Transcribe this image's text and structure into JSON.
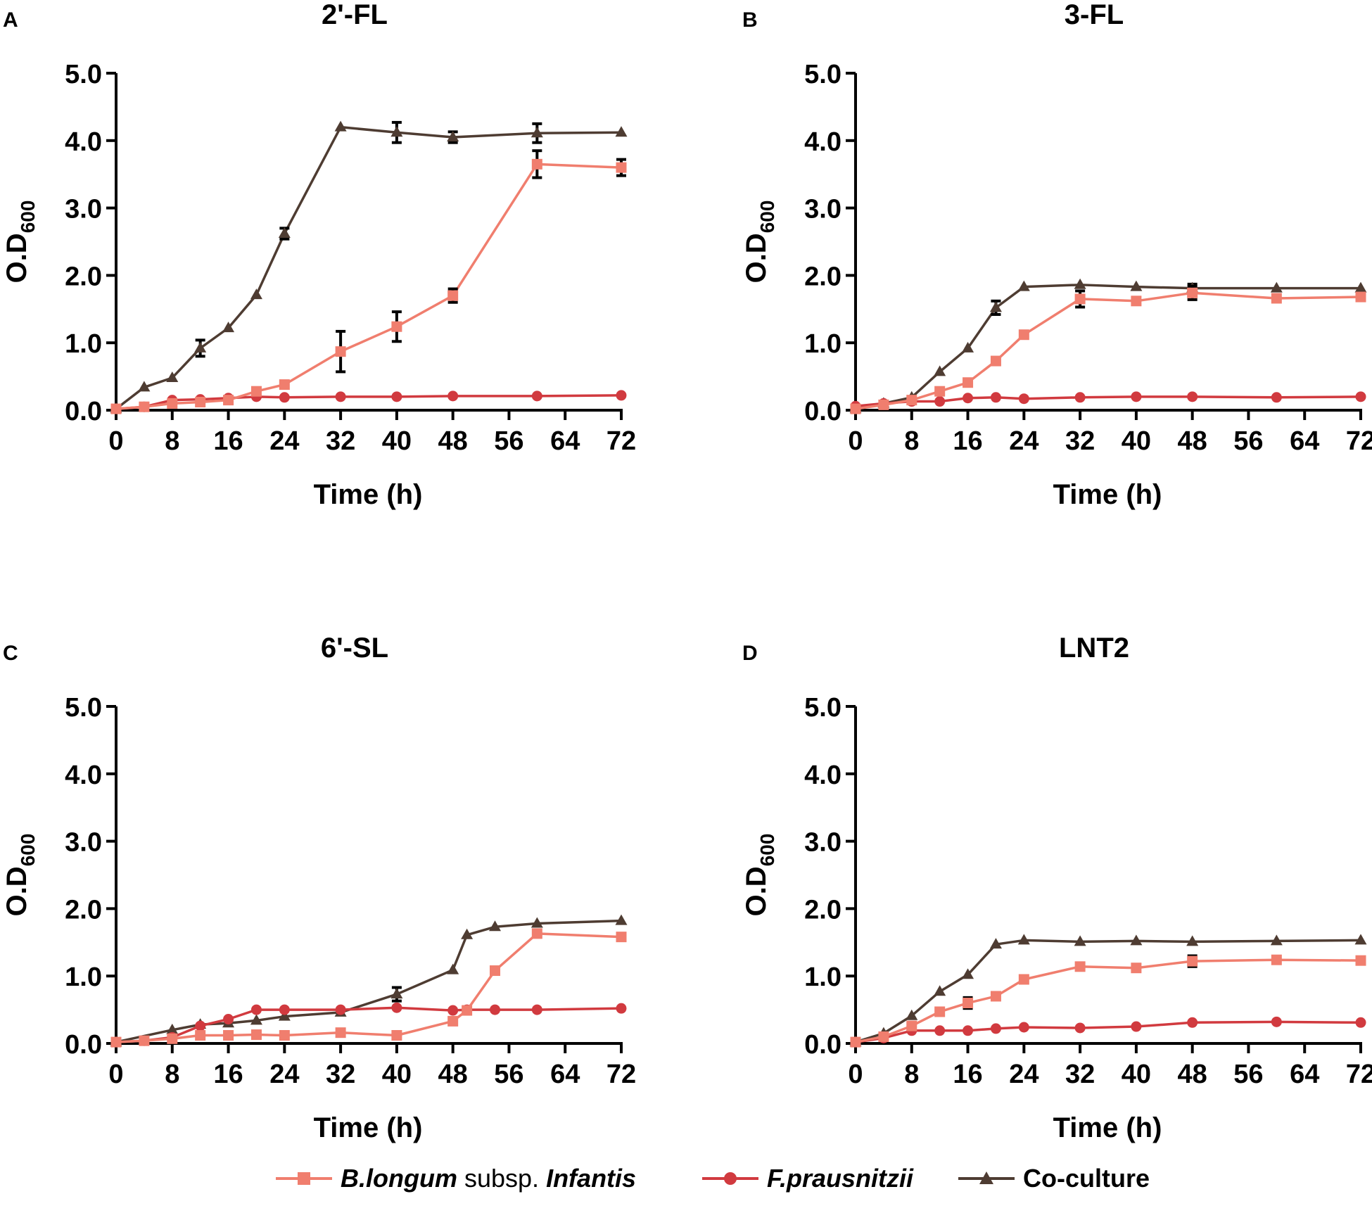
{
  "figure": {
    "legend": {
      "binf": {
        "italic1": "B.longum",
        "plain": " subsp. ",
        "italic2": "Infantis"
      },
      "fpra": {
        "text": "F.prausnitzii"
      },
      "cocult": {
        "text": "Co-culture"
      }
    },
    "ylabel_main": "O.D",
    "ylabel_sub": "600"
  },
  "chart_data": [
    {
      "type": "line",
      "panel": "A",
      "title": "2'-FL",
      "xlabel": "Time (h)",
      "ylabel": "O.D600",
      "xlim": [
        0,
        72
      ],
      "ylim": [
        0,
        5
      ],
      "xticks": [
        0,
        8,
        16,
        24,
        32,
        40,
        48,
        56,
        64,
        72
      ],
      "yticks": [
        0.0,
        1.0,
        2.0,
        3.0,
        4.0,
        5.0
      ],
      "ytick_labels": [
        "0.0",
        "1.0",
        "2.0",
        "3.0",
        "4.0",
        "5.0"
      ],
      "series": [
        {
          "name": "B.longum subsp. Infantis",
          "color": "#f07e6e",
          "marker": "square",
          "x": [
            0,
            4,
            8,
            12,
            16,
            20,
            24,
            32,
            40,
            48,
            60,
            72
          ],
          "y": [
            0.02,
            0.05,
            0.1,
            0.12,
            0.15,
            0.28,
            0.38,
            0.87,
            1.24,
            1.7,
            3.65,
            3.6
          ],
          "err": [
            0,
            0,
            0,
            0,
            0,
            0,
            0,
            0.3,
            0.22,
            0.1,
            0.2,
            0.12
          ]
        },
        {
          "name": "F.prausnitzii",
          "color": "#d13a3f",
          "marker": "circle",
          "x": [
            0,
            4,
            8,
            12,
            16,
            20,
            24,
            32,
            40,
            48,
            60,
            72
          ],
          "y": [
            0.02,
            0.05,
            0.15,
            0.16,
            0.18,
            0.2,
            0.19,
            0.2,
            0.2,
            0.21,
            0.21,
            0.22
          ],
          "err": [
            0,
            0,
            0,
            0,
            0,
            0,
            0,
            0,
            0,
            0,
            0,
            0
          ]
        },
        {
          "name": "Co-culture",
          "color": "#4e3c32",
          "marker": "triangle",
          "x": [
            0,
            4,
            8,
            12,
            16,
            20,
            24,
            32,
            40,
            48,
            60,
            72
          ],
          "y": [
            0.02,
            0.34,
            0.48,
            0.92,
            1.22,
            1.71,
            2.62,
            4.2,
            4.12,
            4.05,
            4.11,
            4.12
          ],
          "err": [
            0,
            0,
            0,
            0.12,
            0,
            0,
            0.08,
            0,
            0.15,
            0.08,
            0.14,
            0
          ]
        }
      ]
    },
    {
      "type": "line",
      "panel": "B",
      "title": "3-FL",
      "xlabel": "Time (h)",
      "ylabel": "O.D600",
      "xlim": [
        0,
        72
      ],
      "ylim": [
        0,
        5
      ],
      "xticks": [
        0,
        8,
        16,
        24,
        32,
        40,
        48,
        56,
        64,
        72
      ],
      "yticks": [
        0.0,
        1.0,
        2.0,
        3.0,
        4.0,
        5.0
      ],
      "ytick_labels": [
        "0.0",
        "1.0",
        "2.0",
        "3.0",
        "4.0",
        "5.0"
      ],
      "series": [
        {
          "name": "B.longum subsp. Infantis",
          "color": "#f07e6e",
          "marker": "square",
          "x": [
            0,
            4,
            8,
            12,
            16,
            20,
            24,
            32,
            40,
            48,
            60,
            72
          ],
          "y": [
            0.02,
            0.08,
            0.15,
            0.28,
            0.41,
            0.73,
            1.12,
            1.65,
            1.62,
            1.74,
            1.66,
            1.68
          ],
          "err": [
            0,
            0,
            0,
            0,
            0,
            0,
            0,
            0.12,
            0,
            0.1,
            0,
            0
          ]
        },
        {
          "name": "F.prausnitzii",
          "color": "#d13a3f",
          "marker": "circle",
          "x": [
            0,
            4,
            8,
            12,
            16,
            20,
            24,
            32,
            40,
            48,
            60,
            72
          ],
          "y": [
            0.06,
            0.1,
            0.13,
            0.13,
            0.18,
            0.19,
            0.17,
            0.19,
            0.2,
            0.2,
            0.19,
            0.2
          ],
          "err": [
            0,
            0,
            0,
            0,
            0,
            0,
            0,
            0,
            0,
            0,
            0,
            0
          ]
        },
        {
          "name": "Co-culture",
          "color": "#4e3c32",
          "marker": "triangle",
          "x": [
            0,
            4,
            8,
            12,
            16,
            20,
            24,
            32,
            40,
            48,
            60,
            72
          ],
          "y": [
            0.02,
            0.1,
            0.19,
            0.57,
            0.92,
            1.52,
            1.83,
            1.86,
            1.83,
            1.81,
            1.81,
            1.81
          ],
          "err": [
            0,
            0,
            0,
            0,
            0,
            0.1,
            0,
            0,
            0,
            0.06,
            0,
            0
          ]
        }
      ]
    },
    {
      "type": "line",
      "panel": "C",
      "title": "6'-SL",
      "xlabel": "Time (h)",
      "ylabel": "O.D600",
      "xlim": [
        0,
        72
      ],
      "ylim": [
        0,
        5
      ],
      "xticks": [
        0,
        8,
        16,
        24,
        32,
        40,
        48,
        56,
        64,
        72
      ],
      "yticks": [
        0.0,
        1.0,
        2.0,
        3.0,
        4.0,
        5.0
      ],
      "ytick_labels": [
        "0.0",
        "1.0",
        "2.0",
        "3.0",
        "4.0",
        "5.0"
      ],
      "series": [
        {
          "name": "B.longum subsp. Infantis",
          "color": "#f07e6e",
          "marker": "square",
          "x": [
            0,
            4,
            8,
            12,
            16,
            20,
            24,
            32,
            40,
            48,
            50,
            54,
            60,
            72
          ],
          "y": [
            0.02,
            0.04,
            0.07,
            0.12,
            0.12,
            0.13,
            0.12,
            0.16,
            0.12,
            0.33,
            0.49,
            1.08,
            1.63,
            1.58
          ],
          "err": [
            0,
            0,
            0,
            0,
            0,
            0,
            0,
            0,
            0,
            0,
            0,
            0,
            0.05,
            0
          ]
        },
        {
          "name": "F.prausnitzii",
          "color": "#d13a3f",
          "marker": "circle",
          "x": [
            0,
            4,
            8,
            12,
            16,
            20,
            24,
            32,
            40,
            48,
            50,
            54,
            60,
            72
          ],
          "y": [
            0.02,
            0.04,
            0.09,
            0.26,
            0.36,
            0.5,
            0.5,
            0.5,
            0.53,
            0.49,
            0.5,
            0.5,
            0.5,
            0.52
          ],
          "err": [
            0,
            0,
            0,
            0,
            0,
            0,
            0,
            0,
            0,
            0,
            0,
            0,
            0,
            0
          ]
        },
        {
          "name": "Co-culture",
          "color": "#4e3c32",
          "marker": "triangle",
          "x": [
            0,
            8,
            12,
            16,
            20,
            24,
            32,
            40,
            48,
            50,
            54,
            60,
            72
          ],
          "y": [
            0.02,
            0.2,
            0.28,
            0.3,
            0.34,
            0.4,
            0.46,
            0.73,
            1.09,
            1.61,
            1.73,
            1.78,
            1.82
          ],
          "err": [
            0,
            0,
            0,
            0,
            0,
            0,
            0,
            0.1,
            0,
            0,
            0,
            0,
            0
          ]
        }
      ]
    },
    {
      "type": "line",
      "panel": "D",
      "title": "LNT2",
      "xlabel": "Time (h)",
      "ylabel": "O.D600",
      "xlim": [
        0,
        72
      ],
      "ylim": [
        0,
        5
      ],
      "xticks": [
        0,
        8,
        16,
        24,
        32,
        40,
        48,
        56,
        64,
        72
      ],
      "yticks": [
        0.0,
        1.0,
        2.0,
        3.0,
        4.0,
        5.0
      ],
      "ytick_labels": [
        "0.0",
        "1.0",
        "2.0",
        "3.0",
        "4.0",
        "5.0"
      ],
      "series": [
        {
          "name": "B.longum subsp. Infantis",
          "color": "#f07e6e",
          "marker": "square",
          "x": [
            0,
            4,
            8,
            12,
            16,
            20,
            24,
            32,
            40,
            48,
            60,
            72
          ],
          "y": [
            0.02,
            0.1,
            0.26,
            0.47,
            0.6,
            0.7,
            0.95,
            1.14,
            1.12,
            1.22,
            1.24,
            1.23
          ],
          "err": [
            0,
            0,
            0,
            0,
            0.08,
            0,
            0,
            0,
            0,
            0.08,
            0,
            0
          ]
        },
        {
          "name": "F.prausnitzii",
          "color": "#d13a3f",
          "marker": "circle",
          "x": [
            0,
            4,
            8,
            12,
            16,
            20,
            24,
            32,
            40,
            48,
            60,
            72
          ],
          "y": [
            0.02,
            0.08,
            0.19,
            0.19,
            0.19,
            0.22,
            0.24,
            0.23,
            0.25,
            0.31,
            0.32,
            0.31
          ],
          "err": [
            0,
            0,
            0,
            0,
            0,
            0,
            0,
            0,
            0,
            0,
            0,
            0
          ]
        },
        {
          "name": "Co-culture",
          "color": "#4e3c32",
          "marker": "triangle",
          "x": [
            0,
            4,
            8,
            12,
            16,
            20,
            24,
            32,
            40,
            48,
            60,
            72
          ],
          "y": [
            0.02,
            0.15,
            0.41,
            0.77,
            1.02,
            1.47,
            1.53,
            1.51,
            1.52,
            1.51,
            1.52,
            1.53
          ],
          "err": [
            0,
            0,
            0,
            0,
            0,
            0,
            0,
            0,
            0,
            0,
            0,
            0
          ]
        }
      ]
    }
  ]
}
